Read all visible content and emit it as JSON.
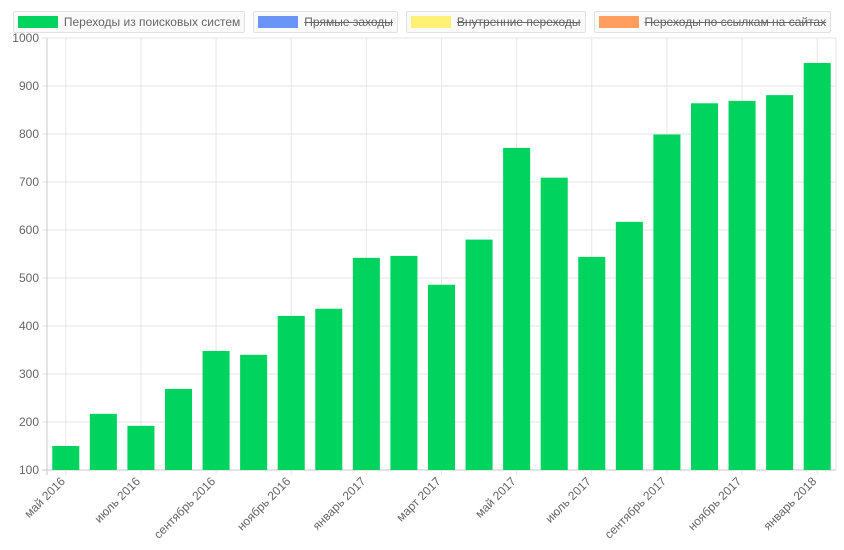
{
  "chart_data": {
    "type": "bar",
    "legend": [
      {
        "label": "Переходы из поисковых систем",
        "color": "#00d45f",
        "hidden": false
      },
      {
        "label": "Прямые заходы",
        "color": "#6b94f7",
        "hidden": true
      },
      {
        "label": "Внутренние переходы",
        "color": "#fff176",
        "hidden": true
      },
      {
        "label": "Переходы по ссылкам на сайтах",
        "color": "#ff9e5e",
        "hidden": true
      }
    ],
    "legend_position": "top",
    "series": [
      {
        "name": "Переходы из поисковых систем",
        "color": "#00d45f",
        "values": [
          150,
          217,
          192,
          269,
          348,
          340,
          421,
          436,
          542,
          546,
          486,
          580,
          771,
          709,
          544,
          617,
          799,
          864,
          869,
          881,
          948
        ]
      }
    ],
    "x_tick_labels": [
      {
        "index": 0,
        "label": "май 2016"
      },
      {
        "index": 2,
        "label": "июль 2016"
      },
      {
        "index": 4,
        "label": "сентябрь 2016"
      },
      {
        "index": 6,
        "label": "ноябрь 2016"
      },
      {
        "index": 8,
        "label": "январь 2017"
      },
      {
        "index": 10,
        "label": "март 2017"
      },
      {
        "index": 12,
        "label": "май 2017"
      },
      {
        "index": 14,
        "label": "июль 2017"
      },
      {
        "index": 16,
        "label": "сентябрь 2017"
      },
      {
        "index": 18,
        "label": "ноябрь 2017"
      },
      {
        "index": 20,
        "label": "январь 2018"
      }
    ],
    "ylim": [
      100,
      1000
    ],
    "yticks": [
      100,
      200,
      300,
      400,
      500,
      600,
      700,
      800,
      900,
      1000
    ],
    "grid": true
  }
}
